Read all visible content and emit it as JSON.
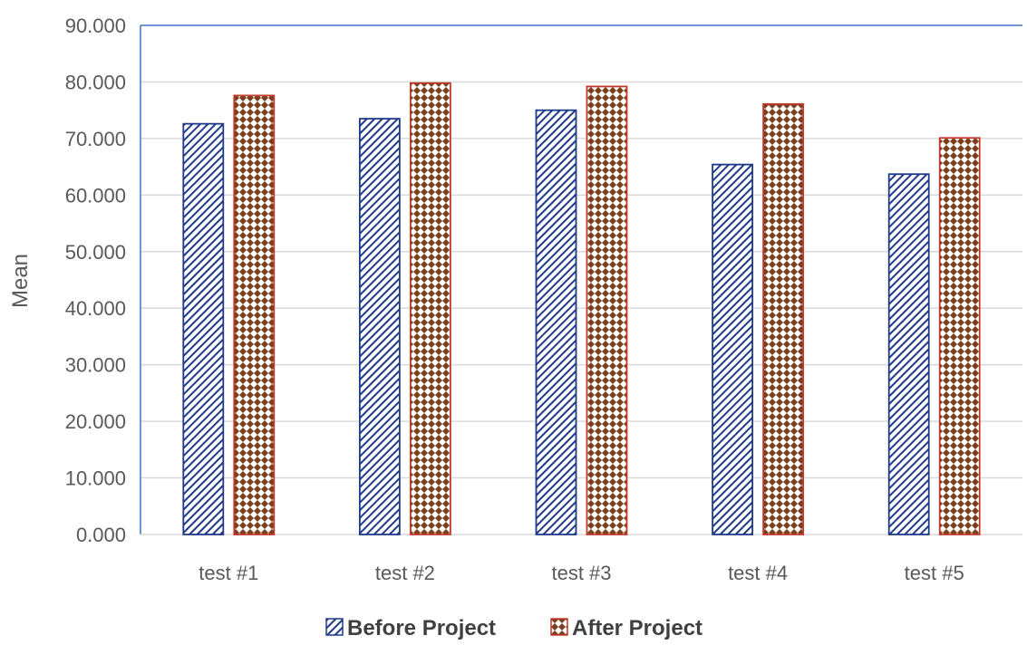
{
  "chart_data": {
    "type": "bar",
    "title": "",
    "xlabel": "",
    "ylabel": "Mean",
    "ylim": [
      0,
      90
    ],
    "y_tick_step": 10,
    "y_tick_decimals": 3,
    "grid": true,
    "legend_position": "bottom",
    "categories": [
      "test #1",
      "test #2",
      "test #3",
      "test #4",
      "test #5"
    ],
    "series": [
      {
        "name": "Before Project",
        "values": [
          72.6,
          73.5,
          75.0,
          65.4,
          63.7
        ],
        "color": "#1F3A8A",
        "pattern": "diagonal-hatch"
      },
      {
        "name": "After Project",
        "values": [
          77.6,
          79.8,
          79.2,
          76.1,
          70.1
        ],
        "color": "#C0392B",
        "pattern": "checker-diamond"
      }
    ],
    "colors": {
      "grid": "#D9D9D9",
      "axis_frame": "#4472C4",
      "pattern_dark": "#7B3F1E"
    }
  }
}
